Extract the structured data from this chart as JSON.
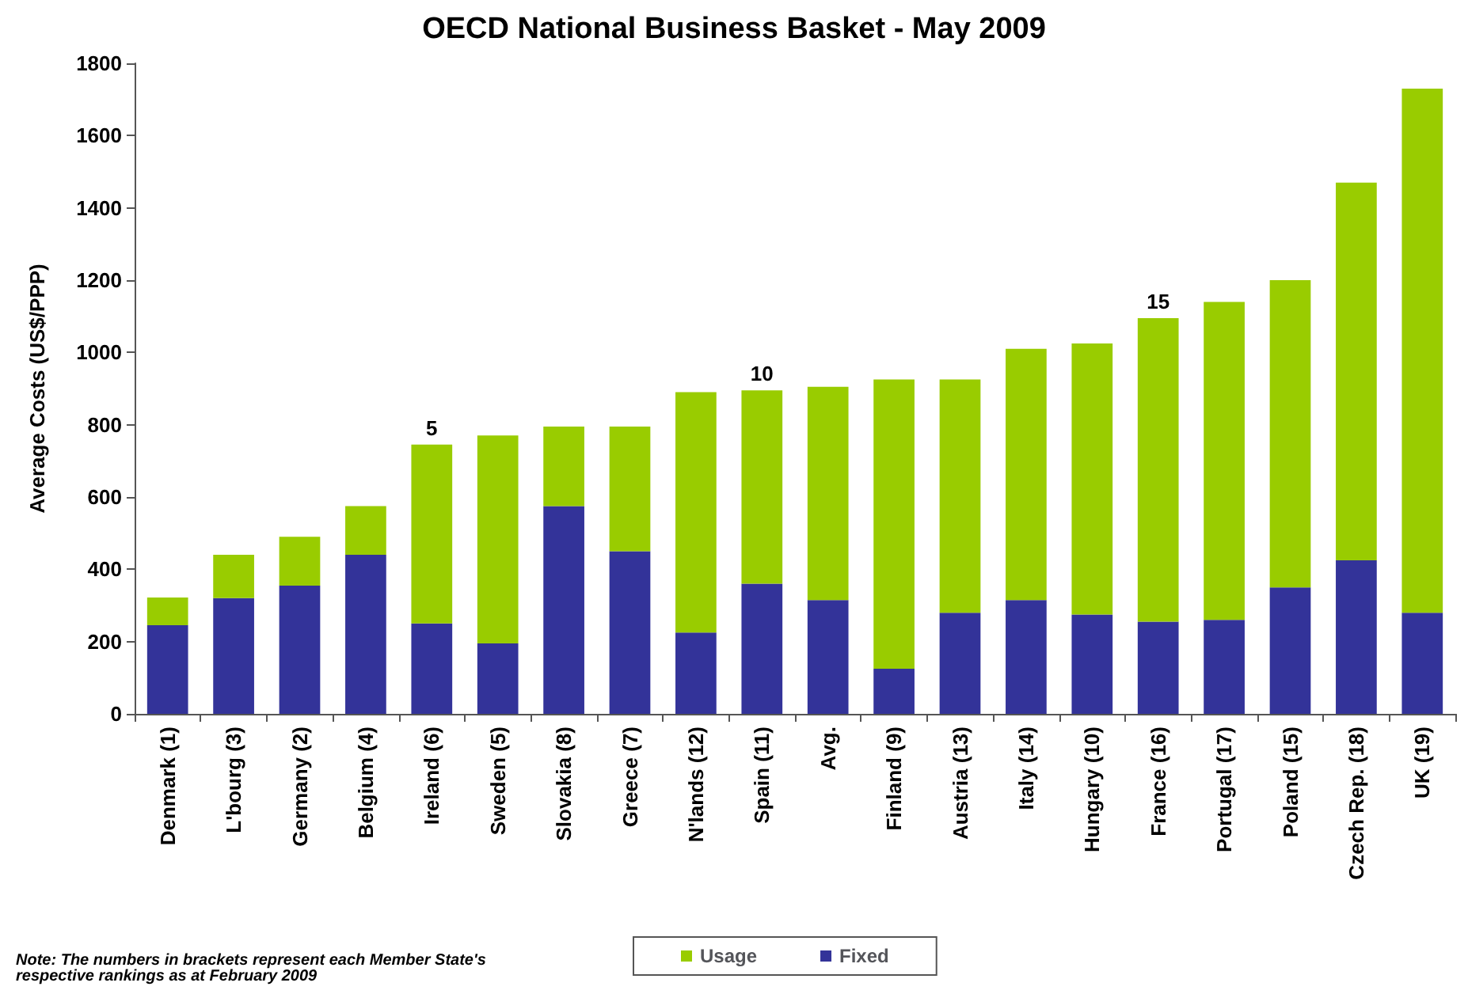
{
  "chart_data": {
    "type": "bar",
    "title": "OECD National Business Basket - May 2009",
    "ylabel": "Average Costs (US$/PPP)",
    "categories": [
      "Denmark (1)",
      "L'bourg (3)",
      "Germany (2)",
      "Belgium (4)",
      "Ireland (6)",
      "Sweden (5)",
      "Slovakia (8)",
      "Greece (7)",
      "N'lands (12)",
      "Spain (11)",
      "Avg.",
      "Finland (9)",
      "Austria (13)",
      "Italy (14)",
      "Hungary (10)",
      "France (16)",
      "Portugal (17)",
      "Poland (15)",
      "Czech Rep. (18)",
      "UK (19)"
    ],
    "stacked": true,
    "series": [
      {
        "name": "Fixed",
        "color": "#333399",
        "values": [
          245,
          320,
          355,
          440,
          250,
          195,
          575,
          450,
          225,
          360,
          315,
          125,
          280,
          315,
          275,
          255,
          260,
          350,
          425,
          280
        ]
      },
      {
        "name": "Usage",
        "color": "#99cc00",
        "values": [
          77,
          120,
          135,
          135,
          495,
          575,
          220,
          345,
          665,
          535,
          590,
          800,
          645,
          695,
          750,
          840,
          880,
          850,
          1045,
          1450
        ]
      }
    ],
    "ylim": [
      0,
      1800
    ],
    "yticks": [
      0,
      200,
      400,
      600,
      800,
      1000,
      1200,
      1400,
      1600,
      1800
    ],
    "grid": false,
    "legend": "bottom",
    "annotations": [
      {
        "text": "5",
        "x": "Ireland (6)",
        "y": 745
      },
      {
        "text": "10",
        "x": "Spain (11)",
        "y": 895
      },
      {
        "text": "15",
        "x": "France (16)",
        "y": 1095
      },
      "Note: The numbers in brackets represent each Member State's respective rankings as at February 2009"
    ]
  }
}
